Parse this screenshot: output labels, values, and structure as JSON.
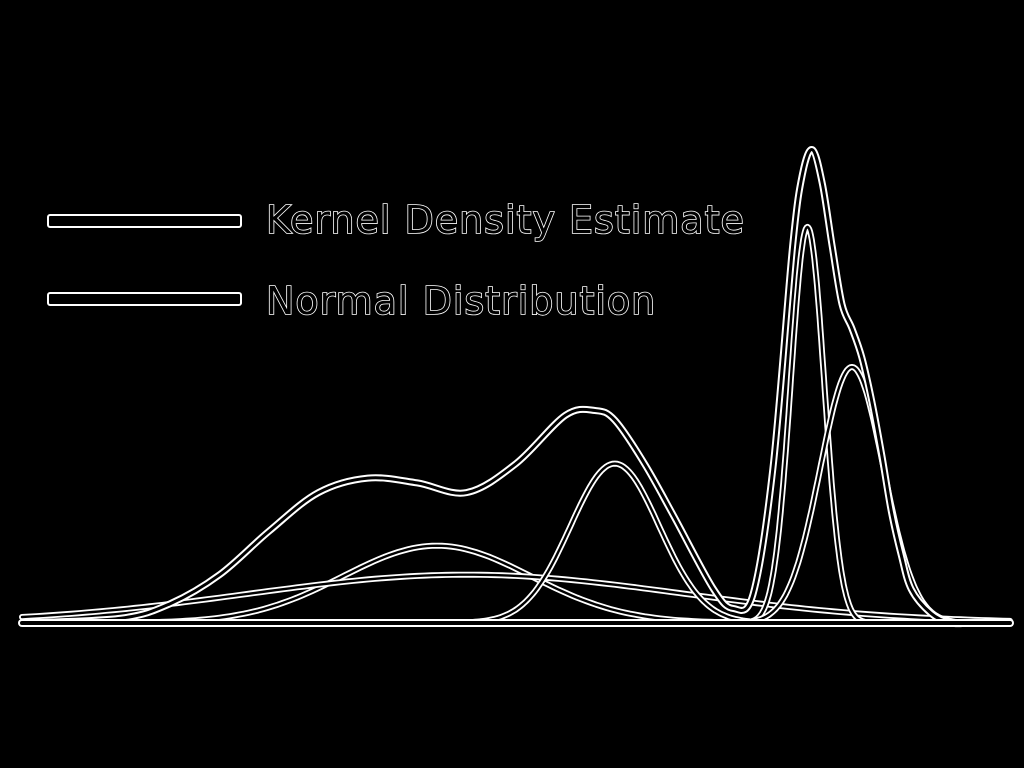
{
  "chart_data": {
    "type": "line",
    "title": "",
    "xlabel": "",
    "ylabel": "",
    "xlim": [
      0,
      100
    ],
    "ylim": [
      0,
      1
    ],
    "grid": false,
    "legend": {
      "placement": "top-left",
      "entries": [
        "Kernel Density Estimate",
        "Normal Distribution"
      ]
    },
    "series": [
      {
        "name": "Kernel Density Estimate",
        "style": "outline-tube",
        "x": [
          0,
          10,
          15,
          20,
          25,
          30,
          35,
          40,
          45,
          50,
          55,
          58,
          60,
          63,
          66,
          70,
          72,
          74,
          76,
          78,
          79,
          80,
          81,
          82,
          83,
          84,
          85,
          86,
          87,
          88,
          89,
          90,
          92,
          94,
          96,
          98,
          100
        ],
        "y": [
          0.0,
          0.01,
          0.04,
          0.1,
          0.19,
          0.27,
          0.3,
          0.29,
          0.27,
          0.33,
          0.43,
          0.44,
          0.42,
          0.33,
          0.22,
          0.07,
          0.03,
          0.06,
          0.32,
          0.78,
          0.93,
          0.98,
          0.91,
          0.78,
          0.66,
          0.61,
          0.55,
          0.46,
          0.35,
          0.23,
          0.14,
          0.07,
          0.02,
          0.0,
          0.0,
          0.0,
          0.0
        ]
      },
      {
        "name": "Normal Distribution",
        "style": "outline-tube",
        "components": [
          {
            "mean": 42,
            "sd": 9.5,
            "weight": 0.16
          },
          {
            "mean": 45,
            "sd": 22,
            "weight": 0.1
          },
          {
            "mean": 60,
            "sd": 4.5,
            "weight": 0.33
          },
          {
            "mean": 79.5,
            "sd": 1.7,
            "weight": 0.82
          },
          {
            "mean": 84,
            "sd": 3.2,
            "weight": 0.53
          }
        ]
      }
    ]
  }
}
